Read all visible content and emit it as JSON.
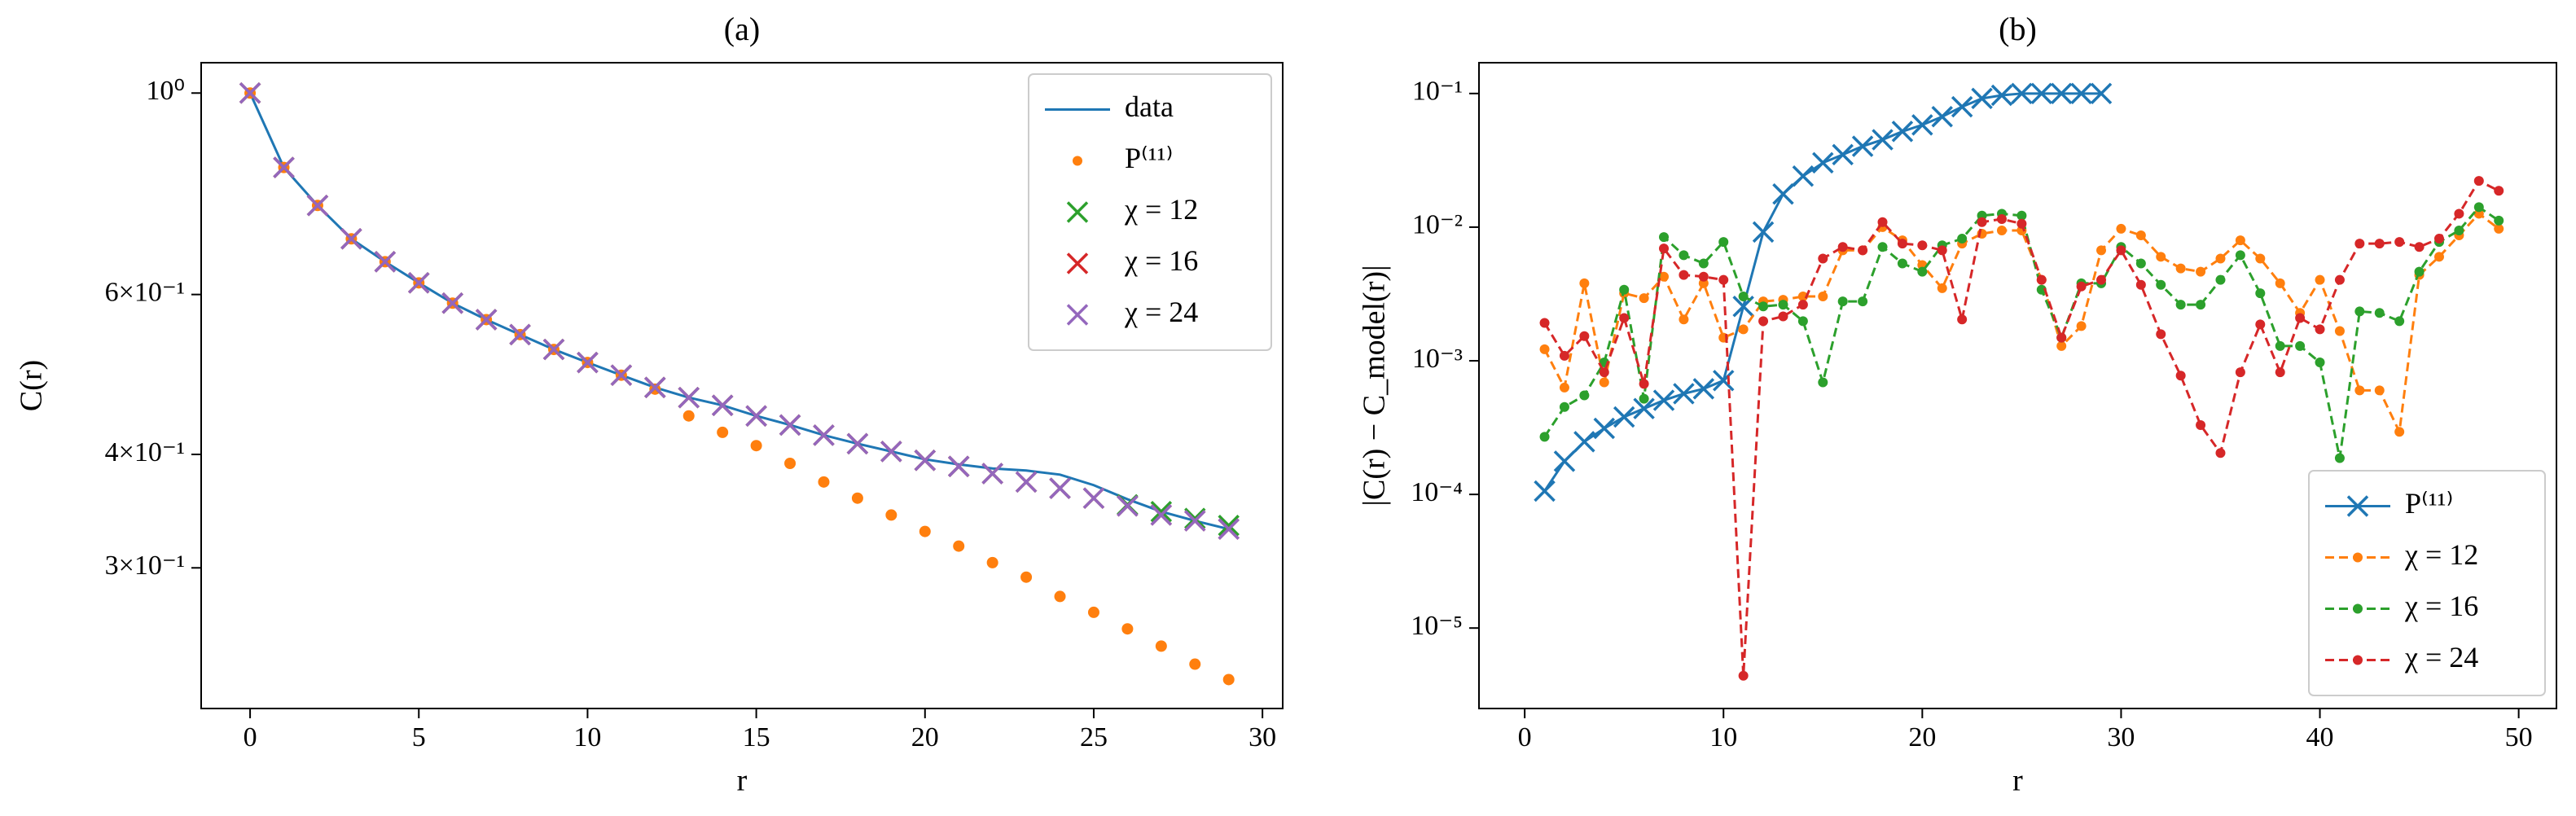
{
  "chart_data": [
    {
      "type": "line",
      "title": "(a)",
      "xlabel": "r",
      "ylabel": "C(r)",
      "yscale": "log",
      "legend": "upper right",
      "xlim": [
        -1.45,
        30.6
      ],
      "xticks": [
        0,
        5,
        10,
        15,
        20,
        25,
        30
      ],
      "ylim": [
        0.21,
        1.08
      ],
      "yticks": [
        {
          "value": 1,
          "label": "10⁰"
        },
        {
          "value": 0.6,
          "label": "6×10⁻¹"
        },
        {
          "value": 0.4,
          "label": "4×10⁻¹"
        },
        {
          "value": 0.3,
          "label": "3×10⁻¹"
        }
      ],
      "x": [
        0,
        1,
        2,
        3,
        4,
        5,
        6,
        7,
        8,
        9,
        10,
        11,
        12,
        13,
        14,
        15,
        16,
        17,
        18,
        19,
        20,
        21,
        22,
        23,
        24,
        25,
        26,
        27,
        28,
        29
      ],
      "series": [
        {
          "name": "data",
          "color": "#1f77b4",
          "linestyle": "solid",
          "values": [
            1.0,
            0.828,
            0.752,
            0.691,
            0.652,
            0.618,
            0.587,
            0.563,
            0.542,
            0.522,
            0.505,
            0.489,
            0.474,
            0.462,
            0.453,
            0.441,
            0.431,
            0.42,
            0.411,
            0.403,
            0.395,
            0.39,
            0.386,
            0.384,
            0.38,
            0.37,
            0.357,
            0.346,
            0.338,
            0.331
          ]
        },
        {
          "name": "P⁽¹¹⁾",
          "color": "#ff7f0e",
          "marker": "o",
          "values": [
            1.0,
            0.828,
            0.752,
            0.691,
            0.652,
            0.618,
            0.587,
            0.563,
            0.542,
            0.522,
            0.505,
            0.489,
            0.472,
            0.441,
            0.423,
            0.409,
            0.391,
            0.373,
            0.358,
            0.343,
            0.329,
            0.317,
            0.304,
            0.293,
            0.279,
            0.268,
            0.257,
            0.246,
            0.235,
            0.226
          ]
        },
        {
          "name": "χ = 12",
          "color": "#2ca02c",
          "marker": "x",
          "values": [
            1.0,
            0.828,
            0.752,
            0.691,
            0.652,
            0.618,
            0.587,
            0.563,
            0.542,
            0.522,
            0.505,
            0.489,
            0.474,
            0.462,
            0.453,
            0.441,
            0.431,
            0.42,
            0.411,
            0.403,
            0.394,
            0.388,
            0.381,
            0.373,
            0.367,
            0.358,
            0.352,
            0.346,
            0.34,
            0.334
          ]
        },
        {
          "name": "χ = 16",
          "color": "#d62728",
          "marker": "x",
          "values": [
            1.0,
            0.828,
            0.752,
            0.691,
            0.652,
            0.618,
            0.587,
            0.563,
            0.542,
            0.522,
            0.505,
            0.489,
            0.474,
            0.462,
            0.453,
            0.441,
            0.431,
            0.42,
            0.411,
            0.403,
            0.394,
            0.388,
            0.381,
            0.373,
            0.367,
            0.358,
            0.351,
            0.343,
            0.338,
            0.331
          ]
        },
        {
          "name": "χ = 24",
          "color": "#9467bd",
          "marker": "x",
          "values": [
            1.0,
            0.828,
            0.752,
            0.691,
            0.652,
            0.618,
            0.587,
            0.563,
            0.542,
            0.522,
            0.505,
            0.489,
            0.474,
            0.462,
            0.453,
            0.441,
            0.431,
            0.42,
            0.411,
            0.403,
            0.394,
            0.388,
            0.381,
            0.373,
            0.367,
            0.358,
            0.351,
            0.343,
            0.338,
            0.331
          ]
        }
      ]
    },
    {
      "type": "line",
      "title": "(b)",
      "xlabel": "r",
      "ylabel": "|C(r) − C_model(r)|",
      "yscale": "log",
      "legend": "lower right",
      "xlim": [
        -2.3,
        51.9
      ],
      "xticks": [
        0,
        10,
        20,
        30,
        40,
        50
      ],
      "ylim": [
        2.5e-06,
        0.17
      ],
      "yticks": [
        {
          "value": 0.1,
          "label": "10⁻¹"
        },
        {
          "value": 0.01,
          "label": "10⁻²"
        },
        {
          "value": 0.001,
          "label": "10⁻³"
        },
        {
          "value": 0.0001,
          "label": "10⁻⁴"
        },
        {
          "value": 1e-05,
          "label": "10⁻⁵"
        }
      ],
      "series": [
        {
          "name": "P⁽¹¹⁾",
          "color": "#1f77b4",
          "marker": "x",
          "linestyle": "solid",
          "x": [
            1,
            2,
            3,
            4,
            5,
            6,
            7,
            8,
            9,
            10,
            11,
            12,
            13,
            14,
            15,
            16,
            17,
            18,
            19,
            20,
            21,
            22,
            23,
            24,
            25,
            26,
            27,
            28,
            29
          ],
          "values": [
            0.000106,
            0.000177,
            0.000248,
            0.000312,
            0.00038,
            0.000439,
            0.000506,
            0.000567,
            0.000617,
            0.000711,
            0.00255,
            0.0092,
            0.0177,
            0.0241,
            0.0303,
            0.0349,
            0.0403,
            0.0451,
            0.052,
            0.0582,
            0.0671,
            0.0796,
            0.0918,
            0.097,
            0.1,
            0.1,
            0.1,
            0.1,
            0.1
          ]
        },
        {
          "name": "χ = 12",
          "color": "#ff7f0e",
          "marker": "o",
          "linestyle": "dashed",
          "x": [
            1,
            2,
            3,
            4,
            5,
            6,
            7,
            8,
            9,
            10,
            11,
            12,
            13,
            14,
            15,
            16,
            17,
            18,
            19,
            20,
            21,
            22,
            23,
            24,
            25,
            26,
            27,
            28,
            29,
            30,
            31,
            32,
            33,
            34,
            35,
            36,
            37,
            38,
            39,
            40,
            41,
            42,
            43,
            44,
            45,
            46,
            47,
            48,
            49
          ],
          "values": [
            0.00122,
            0.00063,
            0.0038,
            0.00069,
            0.0032,
            0.00294,
            0.00426,
            0.00204,
            0.0038,
            0.00149,
            0.00172,
            0.00278,
            0.00286,
            0.00303,
            0.00303,
            0.00671,
            0.00671,
            0.01,
            0.00796,
            0.0052,
            0.00349,
            0.00753,
            0.00893,
            0.00944,
            0.00944,
            0.00403,
            0.00129,
            0.00182,
            0.00671,
            0.00972,
            0.00868,
            0.006,
            0.00491,
            0.00464,
            0.00582,
            0.00796,
            0.00582,
            0.0038,
            0.00228,
            0.00403,
            0.00167,
            0.0006,
            0.0006,
            0.000294,
            0.00439,
            0.006,
            0.00868,
            0.0126,
            0.00972
          ]
        },
        {
          "name": "χ = 16",
          "color": "#2ca02c",
          "marker": "o",
          "linestyle": "dashed",
          "x": [
            1,
            2,
            3,
            4,
            5,
            6,
            7,
            8,
            9,
            10,
            11,
            12,
            13,
            14,
            15,
            16,
            17,
            18,
            19,
            20,
            21,
            22,
            23,
            24,
            25,
            26,
            27,
            28,
            29,
            30,
            31,
            32,
            33,
            34,
            35,
            36,
            37,
            38,
            39,
            40,
            41,
            42,
            43,
            44,
            45,
            46,
            47,
            48,
            49
          ],
          "values": [
            0.00027,
            0.000451,
            0.000551,
            0.000973,
            0.0034,
            0.00052,
            0.00843,
            0.00617,
            0.00535,
            0.00775,
            0.00303,
            0.00255,
            0.00263,
            0.00198,
            0.00069,
            0.00278,
            0.00278,
            0.00711,
            0.00535,
            0.00464,
            0.00731,
            0.0082,
            0.0122,
            0.0126,
            0.0122,
            0.0034,
            0.00149,
            0.0038,
            0.0038,
            0.00711,
            0.00535,
            0.0037,
            0.00263,
            0.00263,
            0.00403,
            0.00617,
            0.0032,
            0.00129,
            0.00129,
            0.000973,
            0.000187,
            0.00234,
            0.00228,
            0.00198,
            0.00464,
            0.00775,
            0.00944,
            0.0141,
            0.0112
          ]
        },
        {
          "name": "χ = 24",
          "color": "#d62728",
          "marker": "o",
          "linestyle": "dashed",
          "x": [
            1,
            2,
            3,
            4,
            5,
            6,
            7,
            8,
            9,
            10,
            11,
            12,
            13,
            14,
            15,
            16,
            17,
            18,
            19,
            20,
            21,
            22,
            23,
            24,
            25,
            26,
            27,
            28,
            29,
            30,
            31,
            32,
            33,
            34,
            35,
            36,
            37,
            38,
            39,
            40,
            41,
            42,
            43,
            44,
            45,
            46,
            47,
            48,
            49
          ],
          "values": [
            0.00192,
            0.00109,
            0.00153,
            0.00082,
            0.00209,
            0.000672,
            0.00692,
            0.00439,
            0.00426,
            0.00403,
            4.4e-06,
            0.00198,
            0.00215,
            0.00263,
            0.00582,
            0.00711,
            0.00671,
            0.0109,
            0.00753,
            0.00731,
            0.00671,
            0.00204,
            0.0109,
            0.0115,
            0.0106,
            0.00403,
            0.00149,
            0.0036,
            0.00403,
            0.00671,
            0.0037,
            0.00158,
            0.000774,
            0.00033,
            0.000204,
            0.00082,
            0.00187,
            0.00082,
            0.00209,
            0.00172,
            0.00403,
            0.00753,
            0.00753,
            0.00775,
            0.00711,
            0.0082,
            0.0126,
            0.0222,
            0.0187
          ]
        }
      ]
    }
  ]
}
